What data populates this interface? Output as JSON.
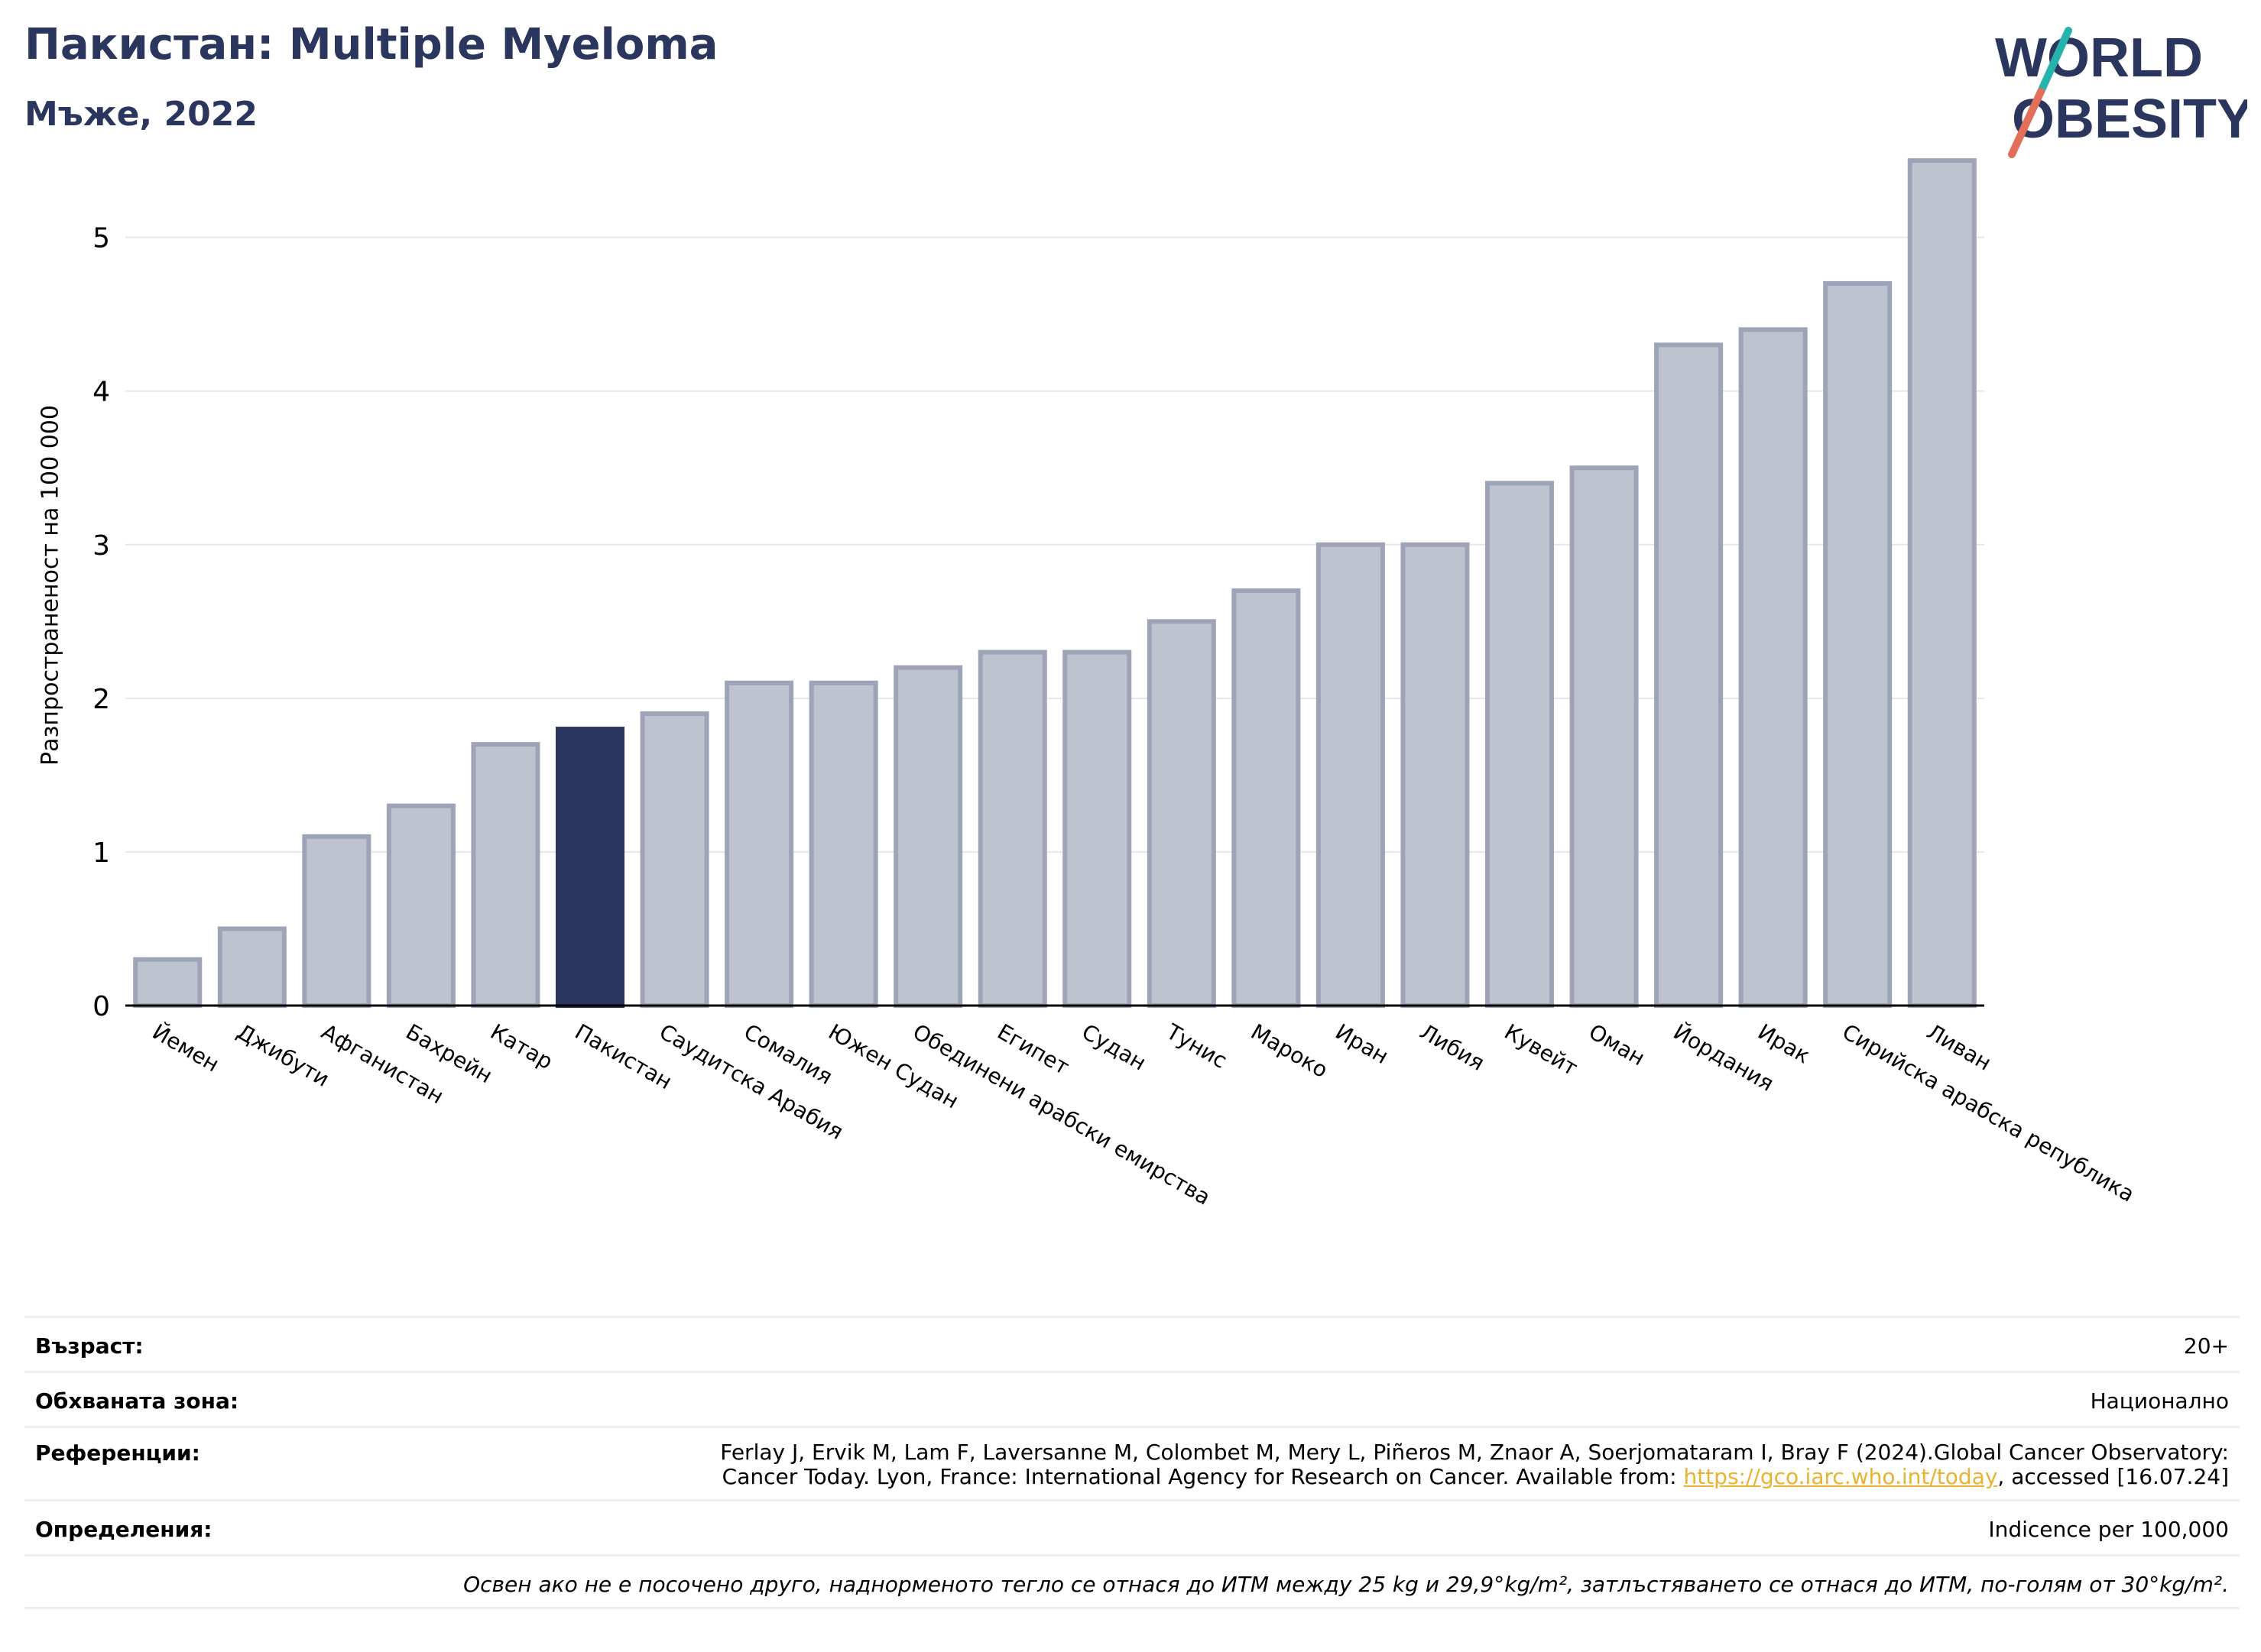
{
  "title": "Пакистан: Multiple Myeloma",
  "subtitle": "Мъже, 2022",
  "logo": {
    "line1": "WORLD",
    "line2": "OBESITY"
  },
  "chart_data": {
    "type": "bar",
    "ylabel": "Разпространеност  на 100 000",
    "xlabel": "",
    "ylim": [
      0,
      5.6
    ],
    "yticks": [
      0,
      1,
      2,
      3,
      4,
      5
    ],
    "grid": true,
    "highlight": "Пакистан",
    "categories": [
      "Йемен",
      "Джибути",
      "Афганистан",
      "Бахрейн",
      "Катар",
      "Пакистан",
      "Саудитска Арабия",
      "Сомалия",
      "Южен Судан",
      "Обединени арабски емирства",
      "Египет",
      "Судан",
      "Тунис",
      "Мароко",
      "Иран",
      "Либия",
      "Кувейт",
      "Оман",
      "Йордания",
      "Ирак",
      "Сирийска арабска република",
      "Ливан"
    ],
    "values": [
      0.3,
      0.5,
      1.1,
      1.3,
      1.7,
      1.8,
      1.9,
      2.1,
      2.1,
      2.2,
      2.3,
      2.3,
      2.5,
      2.7,
      3.0,
      3.0,
      3.4,
      3.5,
      4.3,
      4.4,
      4.7,
      5.5
    ],
    "colors": {
      "bar": "#bfc3cf",
      "bar_edge": "#9ea4b8",
      "highlight": "#2b365f",
      "grid": "#e6e7ec",
      "axis": "#000000"
    }
  },
  "info": {
    "age_label": "Възраст:",
    "age_value": "20+",
    "area_label": "Обхваната зона:",
    "area_value": "Национално",
    "refs_label": "Референции:",
    "refs_line1": "Ferlay J, Ervik M, Lam F, Laversanne M, Colombet M, Mery L, Piñeros M, Znaor A, Soerjomataram I, Bray F (2024).Global Cancer Observatory:",
    "refs_line2_pre": "Cancer Today. Lyon, France: International Agency for Research on Cancer. Available from: ",
    "refs_link": "https://gco.iarc.who.int/today",
    "refs_line2_post": ", accessed [16.07.24]",
    "def_label": "Определения:",
    "def_value": "Indicence per 100,000",
    "note": "Освен ако не е посочено друго, наднорменото тегло се отнася до ИТМ между 25 kg и 29,9°kg/m², затлъстяването се отнася до ИТМ, по-голям от 30°kg/m²."
  }
}
